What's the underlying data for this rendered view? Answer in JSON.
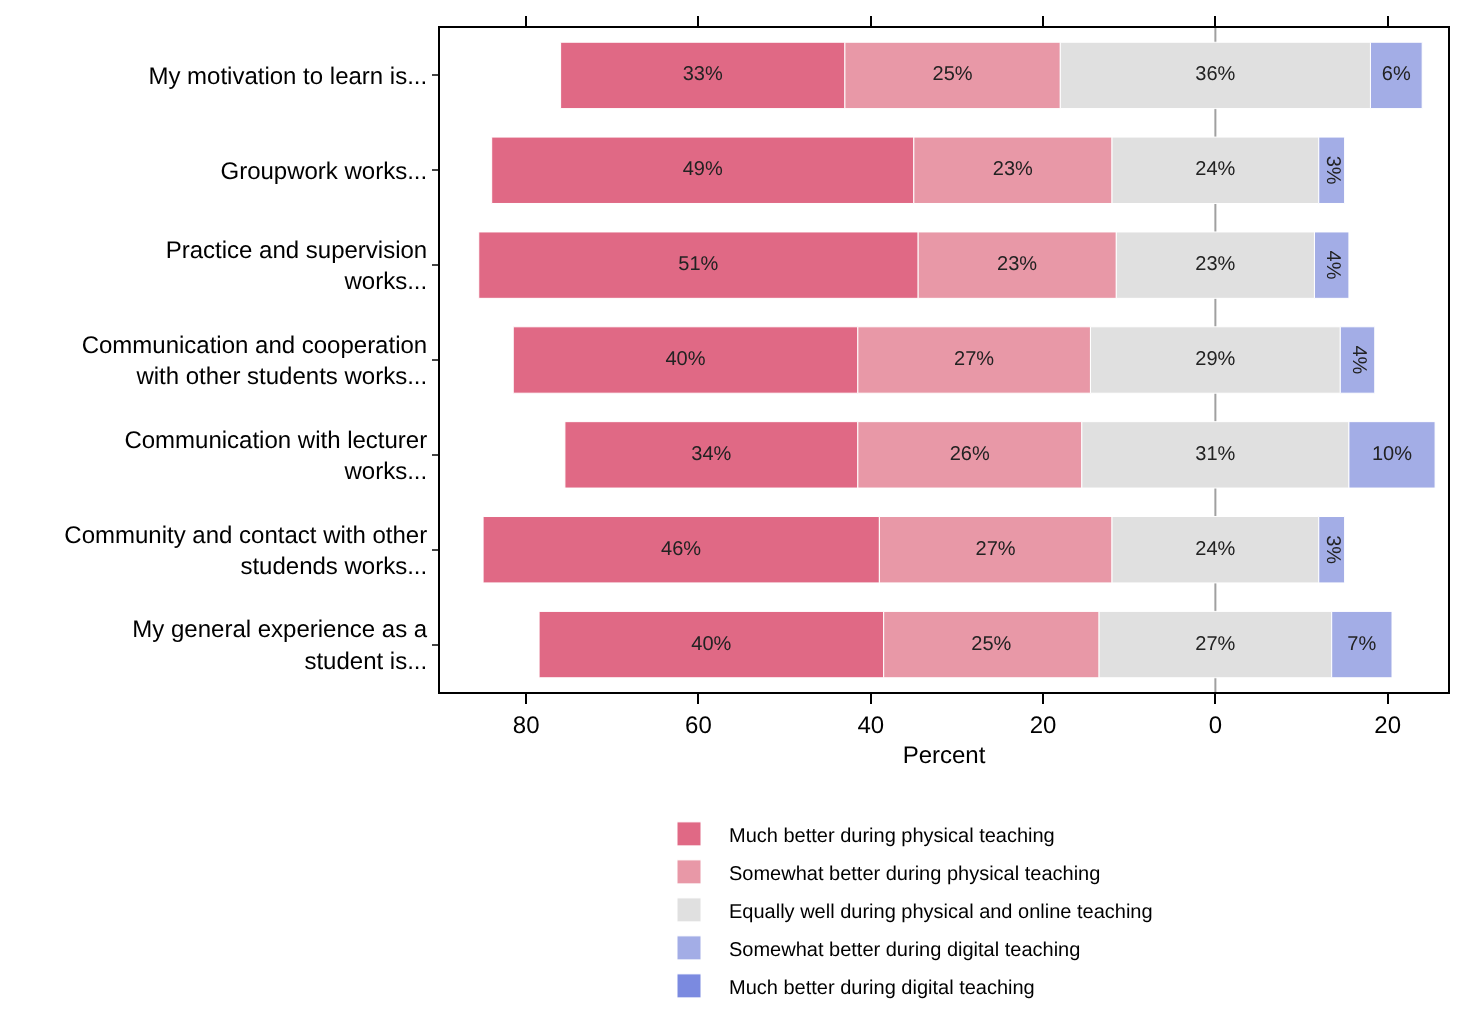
{
  "chart_data": {
    "type": "bar",
    "orientation": "horizontal",
    "xlabel": "Percent",
    "categories": [
      "My motivation to learn is...",
      "Groupwork works...",
      "Practice and supervision works...",
      "Communication and cooperation with other students works...",
      "Communication with lecturer works...",
      "Community and contact with other studends works...",
      "My general experience as a student is..."
    ],
    "series": [
      {
        "name": "Much better during physical teaching",
        "color": "#e06985",
        "values": [
          33,
          49,
          51,
          40,
          34,
          46,
          40
        ],
        "base": [
          -76,
          -84,
          -85.5,
          -81.5,
          -75.5,
          -85,
          -78.5
        ],
        "value_labels": [
          "33%",
          "49%",
          "51%",
          "40%",
          "34%",
          "46%",
          "40%"
        ]
      },
      {
        "name": "Somewhat better during physical teaching",
        "color": "#e898a7",
        "values": [
          25,
          23,
          23,
          27,
          26,
          27,
          25
        ],
        "base": [
          -43,
          -35,
          -34.5,
          -41.5,
          -41.5,
          -39,
          -38.5
        ],
        "value_labels": [
          "25%",
          "23%",
          "23%",
          "27%",
          "26%",
          "27%",
          "25%"
        ]
      },
      {
        "name": "Equally well during physical and online teaching",
        "color": "#e0e0e0",
        "values": [
          36,
          24,
          23,
          29,
          31,
          24,
          27
        ],
        "base": [
          -18,
          -12,
          -11.5,
          -14.5,
          -15.5,
          -12,
          -13.5
        ],
        "value_labels": [
          "36%",
          "24%",
          "23%",
          "29%",
          "31%",
          "24%",
          "27%"
        ]
      },
      {
        "name": "Somewhat better during digital teaching",
        "color": "#a3ade6",
        "values": [
          6,
          3,
          4,
          4,
          10,
          3,
          7
        ],
        "base": [
          18,
          12,
          11.5,
          14.5,
          15.5,
          12,
          13.5
        ],
        "value_labels": [
          "6%",
          "3%",
          "4%",
          "4%",
          "10%",
          "3%",
          "7%"
        ]
      },
      {
        "name": "Much better during digital teaching",
        "color": "#7b8ae0",
        "values": [
          null,
          null,
          null,
          null,
          null,
          null,
          null
        ]
      }
    ],
    "xlim": [
      -90,
      27
    ],
    "xticks": [
      {
        "value": -80,
        "label": "80"
      },
      {
        "value": -60,
        "label": "60"
      },
      {
        "value": -40,
        "label": "40"
      },
      {
        "value": -20,
        "label": "20"
      },
      0,
      20
    ],
    "ref_lines": [
      {
        "axis": "x",
        "value": 0,
        "color": "#a0a0a0"
      }
    ],
    "grid": false,
    "legend": "bottom"
  }
}
